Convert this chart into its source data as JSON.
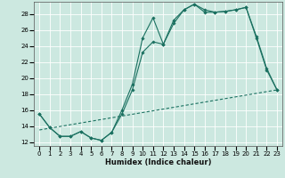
{
  "title": "",
  "xlabel": "Humidex (Indice chaleur)",
  "background_color": "#cce8e0",
  "line_color": "#1a7060",
  "grid_color": "#ffffff",
  "xlim": [
    -0.5,
    23.5
  ],
  "ylim": [
    11.5,
    29.5
  ],
  "xticks": [
    0,
    1,
    2,
    3,
    4,
    5,
    6,
    7,
    8,
    9,
    10,
    11,
    12,
    13,
    14,
    15,
    16,
    17,
    18,
    19,
    20,
    21,
    22,
    23
  ],
  "yticks": [
    12,
    14,
    16,
    18,
    20,
    22,
    24,
    26,
    28
  ],
  "series1_x": [
    0,
    1,
    2,
    3,
    4,
    5,
    6,
    7,
    8,
    9,
    10,
    11,
    12,
    13,
    14,
    15,
    16,
    17,
    18,
    19,
    20,
    21,
    22,
    23
  ],
  "series1_y": [
    15.5,
    13.8,
    12.7,
    12.7,
    13.3,
    12.5,
    12.2,
    13.2,
    16.0,
    19.2,
    25.0,
    27.5,
    24.2,
    27.2,
    28.5,
    29.2,
    28.2,
    28.2,
    28.3,
    28.5,
    28.8,
    25.0,
    21.0,
    18.5
  ],
  "series2_x": [
    0,
    1,
    2,
    3,
    4,
    5,
    6,
    7,
    8,
    9,
    10,
    11,
    12,
    13,
    14,
    15,
    16,
    17,
    18,
    19,
    20,
    21,
    22,
    23
  ],
  "series2_y": [
    15.5,
    13.8,
    12.7,
    12.7,
    13.3,
    12.5,
    12.2,
    13.2,
    15.5,
    18.5,
    23.2,
    24.5,
    24.2,
    26.8,
    28.5,
    29.2,
    28.5,
    28.2,
    28.3,
    28.5,
    28.8,
    25.2,
    21.2,
    18.5
  ],
  "series3_x": [
    0,
    23
  ],
  "series3_y": [
    13.5,
    18.5
  ]
}
